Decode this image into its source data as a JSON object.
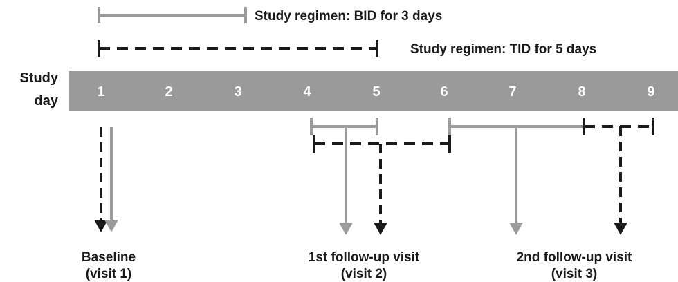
{
  "legend": {
    "bid_label": "Study regimen: BID for 3 days",
    "tid_label": "Study regimen: TID for 5 days"
  },
  "timeline": {
    "label_line1": "Study",
    "label_line2": "day",
    "days": [
      "1",
      "2",
      "3",
      "4",
      "5",
      "6",
      "7",
      "8",
      "9"
    ]
  },
  "visits": [
    {
      "line1": "Baseline",
      "line2": "(visit 1)"
    },
    {
      "line1": "1st follow-up visit",
      "line2": "(visit 2)"
    },
    {
      "line1": "2nd follow-up visit",
      "line2": "(visit 3)"
    }
  ],
  "colors": {
    "bid": "#9b9b9b",
    "tid": "#1a1a1a",
    "band": "#9a9a9a"
  }
}
